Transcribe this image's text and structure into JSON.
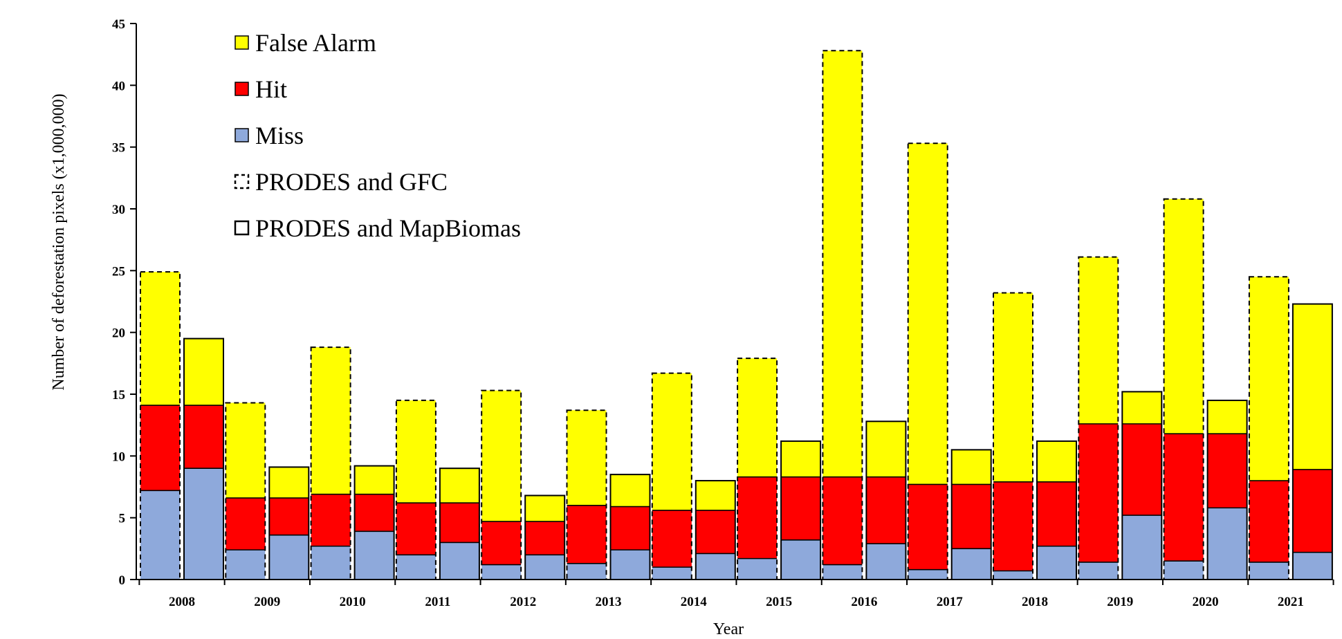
{
  "chart_data": {
    "type": "bar",
    "stacked": true,
    "xlabel": "Year",
    "ylabel": "Number of deforestation  pixels (x1,000,000)",
    "ylim": [
      0,
      45
    ],
    "yticks": [
      0,
      5,
      10,
      15,
      20,
      25,
      30,
      35,
      40,
      45
    ],
    "categories": [
      "2008",
      "2009",
      "2010",
      "2011",
      "2012",
      "2013",
      "2014",
      "2015",
      "2016",
      "2017",
      "2018",
      "2019",
      "2020",
      "2021"
    ],
    "series": [
      {
        "name": "Miss",
        "color": "#8EA9DB",
        "values_prodes_gfc": [
          7.2,
          2.4,
          2.7,
          2.0,
          1.2,
          1.3,
          1.0,
          1.7,
          1.2,
          0.8,
          0.7,
          1.4,
          1.5,
          1.4
        ],
        "values_prodes_mapbiomas": [
          9.0,
          3.6,
          3.9,
          3.0,
          2.0,
          2.4,
          2.1,
          3.2,
          2.9,
          2.5,
          2.7,
          5.2,
          5.8,
          2.2
        ]
      },
      {
        "name": "Hit",
        "color": "#FF0000",
        "values_prodes_gfc": [
          6.9,
          4.2,
          4.2,
          4.2,
          3.5,
          4.7,
          4.6,
          6.6,
          7.1,
          6.9,
          7.2,
          11.2,
          10.3,
          6.6
        ],
        "values_prodes_mapbiomas": [
          5.1,
          3.0,
          3.0,
          3.2,
          2.7,
          3.5,
          3.5,
          5.1,
          5.4,
          5.2,
          5.2,
          7.4,
          6.0,
          6.7
        ]
      },
      {
        "name": "False Alarm",
        "color": "#FFFF00",
        "values_prodes_gfc": [
          10.8,
          7.7,
          11.9,
          8.3,
          10.6,
          7.7,
          11.1,
          9.6,
          34.5,
          27.6,
          15.3,
          13.5,
          19.0,
          16.5
        ],
        "values_prodes_mapbiomas": [
          5.4,
          2.5,
          2.3,
          2.8,
          2.1,
          2.6,
          2.4,
          2.9,
          4.5,
          2.8,
          3.3,
          2.6,
          2.7,
          13.4
        ]
      }
    ],
    "comparisons": [
      {
        "name": "PRODES and GFC",
        "border": "dashed"
      },
      {
        "name": "PRODES and MapBiomas",
        "border": "solid"
      }
    ],
    "legend": {
      "position": "top-left",
      "items": [
        "False Alarm",
        "Hit",
        "Miss",
        "PRODES and GFC",
        "PRODES and MapBiomas"
      ]
    },
    "grid": false
  }
}
